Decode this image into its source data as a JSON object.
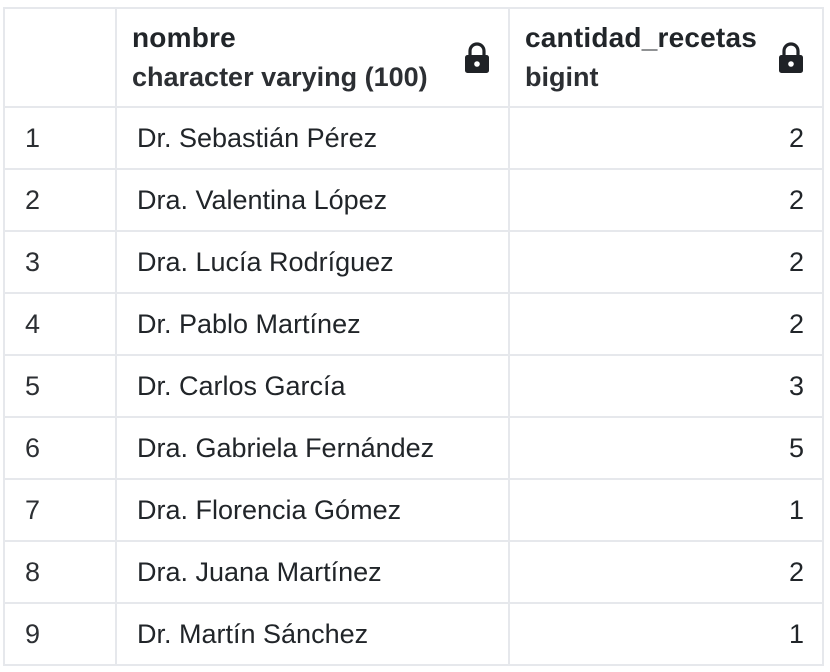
{
  "columns": [
    {
      "name": "nombre",
      "type": "character varying (100)",
      "lock_icon": "lock-icon"
    },
    {
      "name": "cantidad_recetas",
      "type": "bigint",
      "lock_icon": "lock-icon"
    }
  ],
  "rows": [
    {
      "index": "1",
      "nombre": "Dr. Sebastián Pérez",
      "cantidad_recetas": "2"
    },
    {
      "index": "2",
      "nombre": "Dra. Valentina López",
      "cantidad_recetas": "2"
    },
    {
      "index": "3",
      "nombre": "Dra. Lucía Rodríguez",
      "cantidad_recetas": "2"
    },
    {
      "index": "4",
      "nombre": "Dr. Pablo Martínez",
      "cantidad_recetas": "2"
    },
    {
      "index": "5",
      "nombre": "Dr. Carlos García",
      "cantidad_recetas": "3"
    },
    {
      "index": "6",
      "nombre": "Dra. Gabriela Fernández",
      "cantidad_recetas": "5"
    },
    {
      "index": "7",
      "nombre": "Dra. Florencia Gómez",
      "cantidad_recetas": "1"
    },
    {
      "index": "8",
      "nombre": "Dra. Juana Martínez",
      "cantidad_recetas": "2"
    },
    {
      "index": "9",
      "nombre": "Dr. Martín Sánchez",
      "cantidad_recetas": "1"
    }
  ]
}
